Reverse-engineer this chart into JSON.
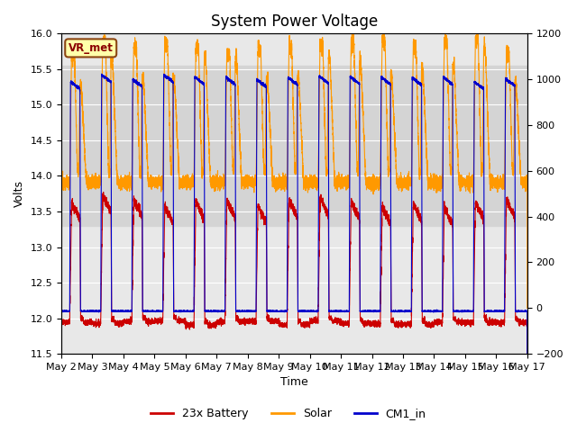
{
  "title": "System Power Voltage",
  "ylabel_left": "Volts",
  "xlabel": "Time",
  "ylim_left": [
    11.5,
    16.0
  ],
  "ylim_right": [
    -200,
    1200
  ],
  "yticks_left": [
    11.5,
    12.0,
    12.5,
    13.0,
    13.5,
    14.0,
    14.5,
    15.0,
    15.5,
    16.0
  ],
  "yticks_right": [
    -200,
    0,
    200,
    400,
    600,
    800,
    1000,
    1200
  ],
  "x_tick_labels": [
    "May 2",
    "May 3",
    "May 4",
    "May 5",
    "May 6",
    "May 7",
    "May 8",
    "May 9",
    "May 10",
    "May 11",
    "May 12",
    "May 13",
    "May 14",
    "May 15",
    "May 16",
    "May 17"
  ],
  "vr_met_label": "VR_met",
  "legend_entries": [
    "23x Battery",
    "Solar",
    "CM1_in"
  ],
  "legend_colors": [
    "#cc0000",
    "#ff9900",
    "#0000cc"
  ],
  "background_color": "#ffffff",
  "plot_bg_color": "#e8e8e8",
  "grid_color": "#ffffff",
  "hspan_lo": 13.3,
  "hspan_hi": 15.55,
  "hspan_color": "#d4d4d4",
  "title_fontsize": 12,
  "label_fontsize": 9,
  "tick_fontsize": 8,
  "legend_fontsize": 9,
  "n_days": 15
}
